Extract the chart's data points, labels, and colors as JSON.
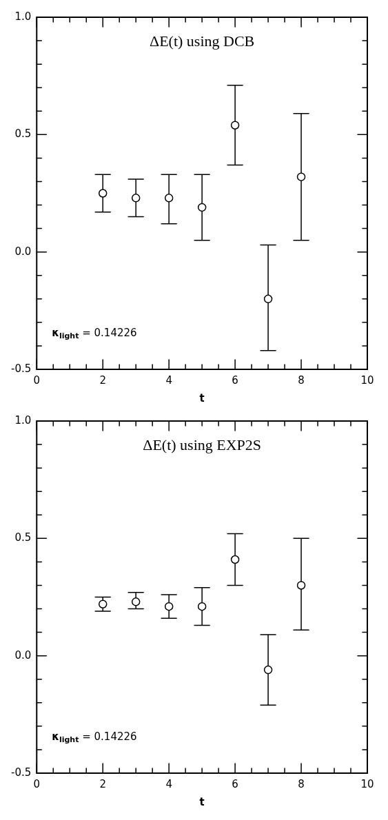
{
  "chart_data": [
    {
      "type": "scatter",
      "title": "ΔE(t) using DCB",
      "xlabel": "t",
      "annotations": [
        "κ$_{light}$ = 0.14226"
      ],
      "marker": "circle",
      "grid": false,
      "x": [
        2,
        3,
        4,
        5,
        6,
        7,
        8
      ],
      "series": [
        {
          "color": "#000000",
          "values": [
            0.25,
            0.23,
            0.23,
            0.19,
            0.54,
            -0.2,
            0.32
          ],
          "errors": [
            [
              0.17,
              0.33
            ],
            [
              0.15,
              0.31
            ],
            [
              0.12,
              0.33
            ],
            [
              0.05,
              0.33
            ],
            [
              0.37,
              0.71
            ],
            [
              -0.42,
              0.03
            ],
            [
              0.05,
              0.59
            ]
          ]
        }
      ],
      "xlim": [
        0,
        10
      ],
      "ylim": [
        -0.5,
        1
      ],
      "xticks": [
        0,
        {
          "value": 0.5,
          "label": null
        },
        {
          "value": 1,
          "label": null
        },
        {
          "value": 1.5,
          "label": null
        },
        2,
        {
          "value": 2.5,
          "label": null
        },
        {
          "value": 3,
          "label": null
        },
        {
          "value": 3.5,
          "label": null
        },
        4,
        {
          "value": 4.5,
          "label": null
        },
        {
          "value": 5,
          "label": null
        },
        {
          "value": 5.5,
          "label": null
        },
        6,
        {
          "value": 6.5,
          "label": null
        },
        {
          "value": 7,
          "label": null
        },
        {
          "value": 7.5,
          "label": null
        },
        8,
        {
          "value": 8.5,
          "label": null
        },
        {
          "value": 9,
          "label": null
        },
        {
          "value": 9.5,
          "label": null
        },
        10
      ],
      "yticks": [
        {
          "value": -0.5,
          "label": "-0.5"
        },
        {
          "value": -0.4,
          "label": null
        },
        {
          "value": -0.3,
          "label": null
        },
        {
          "value": -0.2,
          "label": null
        },
        {
          "value": -0.1,
          "label": null
        },
        {
          "value": 0,
          "label": "0.0"
        },
        {
          "value": 0.1,
          "label": null
        },
        {
          "value": 0.2,
          "label": null
        },
        {
          "value": 0.3,
          "label": null
        },
        {
          "value": 0.4,
          "label": null
        },
        {
          "value": 0.5,
          "label": "0.5"
        },
        {
          "value": 0.6,
          "label": null
        },
        {
          "value": 0.7,
          "label": null
        },
        {
          "value": 0.8,
          "label": null
        },
        {
          "value": 0.9,
          "label": null
        },
        {
          "value": 1,
          "label": "1.0"
        }
      ]
    },
    {
      "type": "scatter",
      "title": "ΔE(t) using EXP2S",
      "xlabel": "t",
      "annotations": [
        "κ$_{light}$ = 0.14226"
      ],
      "marker": "circle",
      "grid": false,
      "x": [
        2,
        3,
        4,
        5,
        6,
        7,
        8
      ],
      "series": [
        {
          "color": "#000000",
          "values": [
            0.22,
            0.23,
            0.21,
            0.21,
            0.41,
            -0.06,
            0.3
          ],
          "errors": [
            [
              0.19,
              0.25
            ],
            [
              0.2,
              0.27
            ],
            [
              0.16,
              0.26
            ],
            [
              0.13,
              0.29
            ],
            [
              0.3,
              0.52
            ],
            [
              -0.21,
              0.09
            ],
            [
              0.11,
              0.5
            ]
          ]
        }
      ],
      "xlim": [
        0,
        10
      ],
      "ylim": [
        -0.5,
        1
      ],
      "xticks": [
        0,
        {
          "value": 0.5,
          "label": null
        },
        {
          "value": 1,
          "label": null
        },
        {
          "value": 1.5,
          "label": null
        },
        2,
        {
          "value": 2.5,
          "label": null
        },
        {
          "value": 3,
          "label": null
        },
        {
          "value": 3.5,
          "label": null
        },
        4,
        {
          "value": 4.5,
          "label": null
        },
        {
          "value": 5,
          "label": null
        },
        {
          "value": 5.5,
          "label": null
        },
        6,
        {
          "value": 6.5,
          "label": null
        },
        {
          "value": 7,
          "label": null
        },
        {
          "value": 7.5,
          "label": null
        },
        8,
        {
          "value": 8.5,
          "label": null
        },
        {
          "value": 9,
          "label": null
        },
        {
          "value": 9.5,
          "label": null
        },
        10
      ],
      "yticks": [
        {
          "value": -0.5,
          "label": "-0.5"
        },
        {
          "value": -0.4,
          "label": null
        },
        {
          "value": -0.3,
          "label": null
        },
        {
          "value": -0.2,
          "label": null
        },
        {
          "value": -0.1,
          "label": null
        },
        {
          "value": 0,
          "label": "0.0"
        },
        {
          "value": 0.1,
          "label": null
        },
        {
          "value": 0.2,
          "label": null
        },
        {
          "value": 0.3,
          "label": null
        },
        {
          "value": 0.4,
          "label": null
        },
        {
          "value": 0.5,
          "label": "0.5"
        },
        {
          "value": 0.6,
          "label": null
        },
        {
          "value": 0.7,
          "label": null
        },
        {
          "value": 0.8,
          "label": null
        },
        {
          "value": 0.9,
          "label": null
        },
        {
          "value": 1,
          "label": "1.0"
        }
      ]
    }
  ]
}
